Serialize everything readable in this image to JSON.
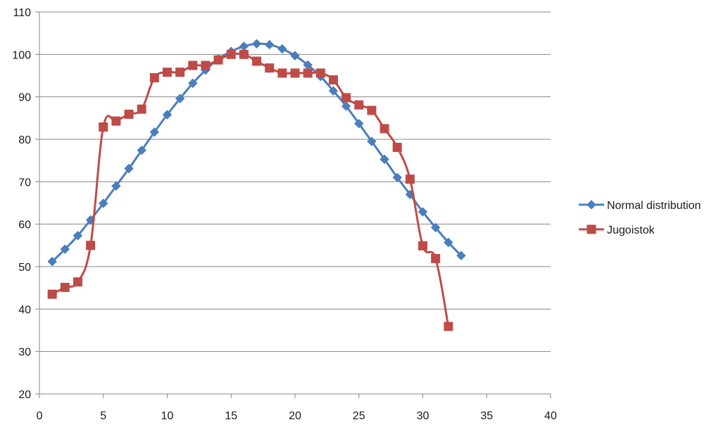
{
  "chart_data": {
    "type": "line",
    "title": "",
    "xlabel": "",
    "ylabel": "",
    "xlim": [
      0,
      40
    ],
    "ylim": [
      20,
      110
    ],
    "x_ticks": [
      0,
      5,
      10,
      15,
      20,
      25,
      30,
      35,
      40
    ],
    "y_ticks": [
      20,
      30,
      40,
      50,
      60,
      70,
      80,
      90,
      100,
      110
    ],
    "grid": "horizontal",
    "legend_position": "right",
    "series": [
      {
        "name": "Normal distribution",
        "color": "#4a7ebb",
        "marker": "diamond",
        "smooth": true,
        "x": [
          1,
          2,
          3,
          4,
          5,
          6,
          7,
          8,
          9,
          10,
          11,
          12,
          13,
          14,
          15,
          16,
          17,
          18,
          19,
          20,
          21,
          22,
          23,
          24,
          25,
          26,
          27,
          28,
          29,
          30,
          31,
          32,
          33
        ],
        "y": [
          51.2,
          54.1,
          57.3,
          61.0,
          64.9,
          69.0,
          73.1,
          77.4,
          81.7,
          85.8,
          89.6,
          93.2,
          96.3,
          98.9,
          100.7,
          101.9,
          102.5,
          102.3,
          101.3,
          99.7,
          97.5,
          94.8,
          91.4,
          87.8,
          83.7,
          79.5,
          75.3,
          71.0,
          67.0,
          62.9,
          59.2,
          55.7,
          52.6
        ]
      },
      {
        "name": "Jugoistok",
        "color": "#be4b48",
        "marker": "square",
        "smooth": true,
        "x": [
          1,
          2,
          3,
          4,
          5,
          6,
          7,
          8,
          9,
          10,
          11,
          12,
          13,
          14,
          15,
          16,
          17,
          18,
          19,
          20,
          21,
          22,
          23,
          24,
          25,
          26,
          27,
          28,
          29,
          30,
          31,
          32
        ],
        "y": [
          43.5,
          45.1,
          46.4,
          55.0,
          82.9,
          84.3,
          85.9,
          87.1,
          94.5,
          95.8,
          95.8,
          97.4,
          97.4,
          98.7,
          100.0,
          100.0,
          98.4,
          96.8,
          95.6,
          95.6,
          95.6,
          95.6,
          94.0,
          89.8,
          88.1,
          86.8,
          82.5,
          78.1,
          70.6,
          54.9,
          51.9,
          35.9
        ]
      }
    ]
  }
}
